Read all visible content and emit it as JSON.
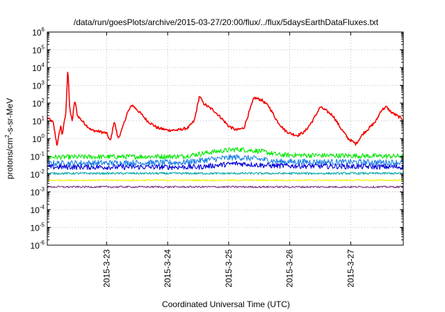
{
  "chart_data": {
    "type": "line",
    "title": "/data/run/goesPlots/archive/2015-03-27/20:00/flux/../flux/5daysEarthDataFluxes.txt",
    "xlabel": "Coordinated Universal Time (UTC)",
    "ylabel": {
      "base": "protons/cm",
      "sup": "2",
      "rest": "-s-sr-MeV"
    },
    "y_scale": "log",
    "ylim": [
      1e-06,
      1000000.0
    ],
    "y_ticks": [
      {
        "value": 1e-06,
        "base": "10",
        "exp": "-6"
      },
      {
        "value": 1e-05,
        "base": "10",
        "exp": "-5"
      },
      {
        "value": 0.0001,
        "base": "10",
        "exp": "-4"
      },
      {
        "value": 0.001,
        "base": "10",
        "exp": "-3"
      },
      {
        "value": 0.01,
        "base": "10",
        "exp": "-2"
      },
      {
        "value": 0.1,
        "base": "10",
        "exp": "-1"
      },
      {
        "value": 1,
        "base": "10",
        "exp": "0"
      },
      {
        "value": 10,
        "base": "10",
        "exp": "1"
      },
      {
        "value": 100,
        "base": "10",
        "exp": "2"
      },
      {
        "value": 1000,
        "base": "10",
        "exp": "3"
      },
      {
        "value": 10000,
        "base": "10",
        "exp": "4"
      },
      {
        "value": 100000,
        "base": "10",
        "exp": "5"
      },
      {
        "value": 1000000,
        "base": "10",
        "exp": "6"
      }
    ],
    "xlim": [
      "2015-03-22 00:40",
      "2015-03-27 20:40"
    ],
    "x_ticks": [
      {
        "value": "2015-03-23 00:00",
        "label": "2015-3-23"
      },
      {
        "value": "2015-03-24 00:00",
        "label": "2015-3-24"
      },
      {
        "value": "2015-03-25 00:00",
        "label": "2015-3-25"
      },
      {
        "value": "2015-03-26 00:00",
        "label": "2015-3-26"
      },
      {
        "value": "2015-03-27 00:00",
        "label": "2015-3-27"
      }
    ],
    "grid": true,
    "series": [
      {
        "color": "#f40000",
        "noise": 0.08,
        "points": [
          [
            "2015-03-22 00:40",
            15
          ],
          [
            "2015-03-22 03:00",
            8
          ],
          [
            "2015-03-22 04:30",
            0.4
          ],
          [
            "2015-03-22 06:00",
            6
          ],
          [
            "2015-03-22 06:30",
            1.5
          ],
          [
            "2015-03-22 08:00",
            30
          ],
          [
            "2015-03-22 08:45",
            12000
          ],
          [
            "2015-03-22 09:30",
            40
          ],
          [
            "2015-03-22 10:30",
            10
          ],
          [
            "2015-03-22 11:30",
            150
          ],
          [
            "2015-03-22 12:30",
            20
          ],
          [
            "2015-03-22 15:00",
            8
          ],
          [
            "2015-03-22 18:00",
            3
          ],
          [
            "2015-03-22 21:00",
            2.5
          ],
          [
            "2015-03-23 00:00",
            2
          ],
          [
            "2015-03-23 01:30",
            0.7
          ],
          [
            "2015-03-23 03:00",
            10
          ],
          [
            "2015-03-23 04:30",
            1
          ],
          [
            "2015-03-23 06:00",
            3
          ],
          [
            "2015-03-23 08:00",
            25
          ],
          [
            "2015-03-23 10:00",
            80
          ],
          [
            "2015-03-23 13:00",
            30
          ],
          [
            "2015-03-23 16:00",
            10
          ],
          [
            "2015-03-23 20:00",
            4
          ],
          [
            "2015-03-24 00:00",
            3
          ],
          [
            "2015-03-24 04:00",
            3
          ],
          [
            "2015-03-24 08:00",
            4
          ],
          [
            "2015-03-24 10:30",
            10
          ],
          [
            "2015-03-24 12:30",
            250
          ],
          [
            "2015-03-24 14:00",
            100
          ],
          [
            "2015-03-24 16:00",
            60
          ],
          [
            "2015-03-24 18:00",
            40
          ],
          [
            "2015-03-24 21:00",
            15
          ],
          [
            "2015-03-25 00:00",
            5
          ],
          [
            "2015-03-25 03:00",
            3
          ],
          [
            "2015-03-25 06:00",
            4
          ],
          [
            "2015-03-25 08:00",
            30
          ],
          [
            "2015-03-25 10:00",
            200
          ],
          [
            "2015-03-25 13:00",
            150
          ],
          [
            "2015-03-25 16:00",
            60
          ],
          [
            "2015-03-25 19:00",
            10
          ],
          [
            "2015-03-25 22:00",
            3
          ],
          [
            "2015-03-26 00:00",
            2
          ],
          [
            "2015-03-26 03:00",
            1.5
          ],
          [
            "2015-03-26 06:00",
            2.5
          ],
          [
            "2015-03-26 09:00",
            10
          ],
          [
            "2015-03-26 12:00",
            60
          ],
          [
            "2015-03-26 14:00",
            40
          ],
          [
            "2015-03-26 17:00",
            20
          ],
          [
            "2015-03-26 20:00",
            4
          ],
          [
            "2015-03-26 23:00",
            1
          ],
          [
            "2015-03-27 02:00",
            0.5
          ],
          [
            "2015-03-27 05:00",
            2
          ],
          [
            "2015-03-27 08:00",
            5
          ],
          [
            "2015-03-27 10:00",
            10
          ],
          [
            "2015-03-27 12:00",
            40
          ],
          [
            "2015-03-27 14:00",
            60
          ],
          [
            "2015-03-27 16:00",
            30
          ],
          [
            "2015-03-27 18:00",
            20
          ],
          [
            "2015-03-27 20:40",
            12
          ]
        ]
      },
      {
        "color": "#00e800",
        "noise": 0.14,
        "points": [
          [
            "2015-03-22 00:40",
            0.09
          ],
          [
            "2015-03-24 06:00",
            0.1
          ],
          [
            "2015-03-24 18:00",
            0.18
          ],
          [
            "2015-03-25 03:00",
            0.25
          ],
          [
            "2015-03-25 12:00",
            0.2
          ],
          [
            "2015-03-25 20:00",
            0.12
          ],
          [
            "2015-03-27 20:40",
            0.1
          ]
        ]
      },
      {
        "color": "#1a7fe6",
        "noise": 0.17,
        "points": [
          [
            "2015-03-22 00:40",
            0.04
          ],
          [
            "2015-03-24 06:00",
            0.045
          ],
          [
            "2015-03-24 18:00",
            0.07
          ],
          [
            "2015-03-25 03:00",
            0.09
          ],
          [
            "2015-03-25 12:00",
            0.07
          ],
          [
            "2015-03-25 20:00",
            0.05
          ],
          [
            "2015-03-27 20:40",
            0.045
          ]
        ]
      },
      {
        "color": "#0000d8",
        "noise": 0.15,
        "points": [
          [
            "2015-03-22 00:40",
            0.025
          ],
          [
            "2015-03-24 12:00",
            0.025
          ],
          [
            "2015-03-25 03:00",
            0.04
          ],
          [
            "2015-03-25 16:00",
            0.03
          ],
          [
            "2015-03-27 20:40",
            0.025
          ]
        ]
      },
      {
        "color": "#00a8a8",
        "noise": 0.06,
        "points": [
          [
            "2015-03-22 00:40",
            0.011
          ],
          [
            "2015-03-27 20:40",
            0.011
          ]
        ]
      },
      {
        "color": "#f0f000",
        "noise": 0.05,
        "points": [
          [
            "2015-03-22 00:40",
            0.0045
          ],
          [
            "2015-03-27 20:40",
            0.0045
          ]
        ]
      },
      {
        "color": "#7a2b7a",
        "noise": 0.05,
        "points": [
          [
            "2015-03-22 00:40",
            0.0019
          ],
          [
            "2015-03-27 20:40",
            0.0019
          ]
        ]
      }
    ]
  }
}
